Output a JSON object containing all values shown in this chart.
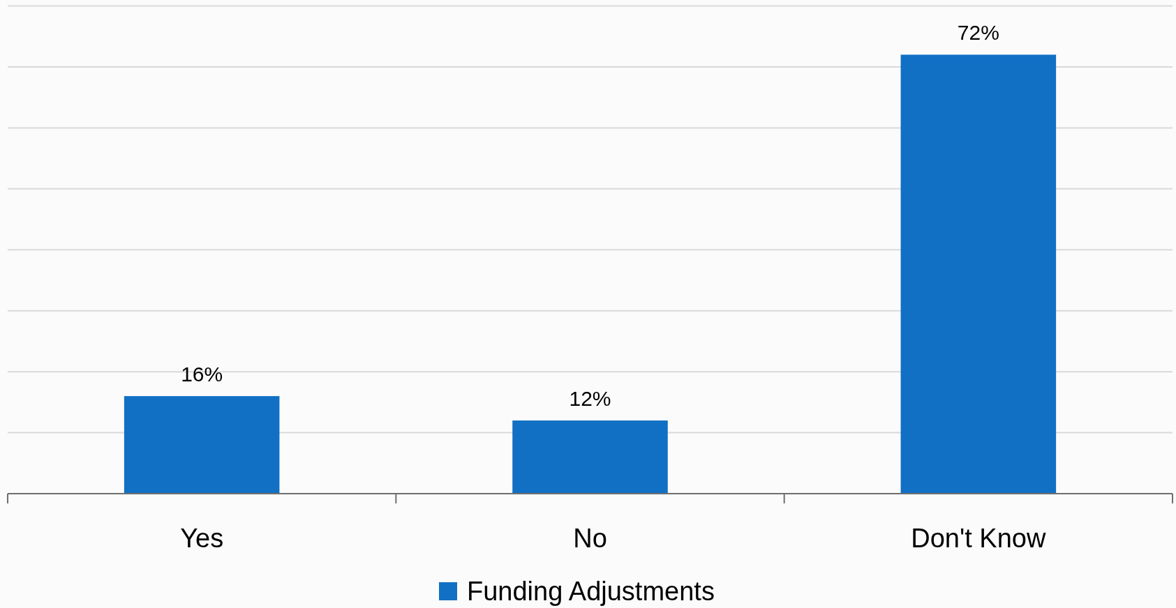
{
  "chart_data": {
    "type": "bar",
    "categories": [
      "Yes",
      "No",
      "Don't Know"
    ],
    "series": [
      {
        "name": "Funding Adjustments",
        "color": "#1170c4",
        "values": [
          16,
          12,
          72
        ],
        "value_labels": [
          "16%",
          "12%",
          "72%"
        ]
      }
    ],
    "ylim": [
      0,
      80
    ],
    "yticks": [
      {
        "value": 0,
        "label": null
      },
      {
        "value": 10,
        "label": null
      },
      {
        "value": 20,
        "label": null
      },
      {
        "value": 30,
        "label": null
      },
      {
        "value": 40,
        "label": null
      },
      {
        "value": 50,
        "label": null
      },
      {
        "value": 60,
        "label": null
      },
      {
        "value": 70,
        "label": null
      },
      {
        "value": 80,
        "label": null
      }
    ],
    "grid": "y",
    "legend": "bottom",
    "tick_labels": "x"
  }
}
